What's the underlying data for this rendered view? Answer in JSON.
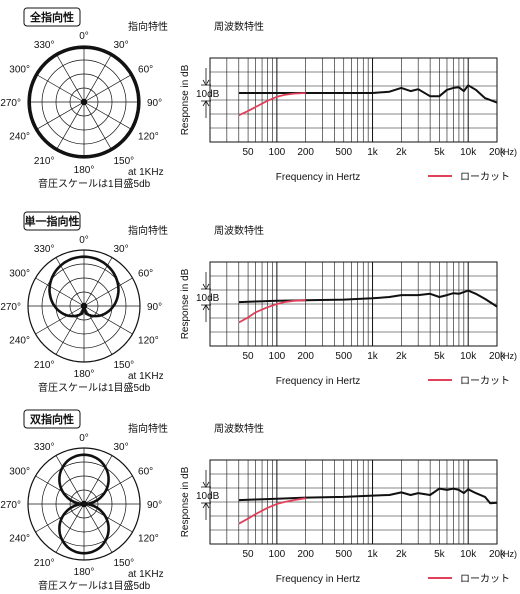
{
  "chart_data": [
    {
      "type": "polar",
      "mode_label": "全指向性",
      "header_polar": "指向特性",
      "pattern": "omni",
      "angle_labels": [
        "0°",
        "30°",
        "60°",
        "90°",
        "120°",
        "150°",
        "180°",
        "210°",
        "240°",
        "270°",
        "300°",
        "330°"
      ],
      "freq_note": "at 1KHz",
      "scale_note": "音圧スケールは1目盛5db",
      "grid_rings": 4,
      "pattern_values_db": {
        "angles": [
          0,
          30,
          60,
          90,
          120,
          150,
          180,
          210,
          240,
          270,
          300,
          330
        ],
        "db": [
          0,
          0,
          0,
          0,
          0,
          0,
          0,
          0,
          0,
          0,
          0,
          0
        ]
      }
    },
    {
      "type": "line",
      "header_freq": "周波数特性",
      "xlabel": "Frequency in Hertz",
      "ylabel": "Response in dB",
      "y_scale_label": "10dB",
      "xscale": "log",
      "xlim": [
        20,
        20000
      ],
      "x_tick_labels": [
        "50",
        "100",
        "200",
        "500",
        "1k",
        "2k",
        "5k",
        "10k",
        "20k"
      ],
      "x_unit": "(Hz)",
      "legend": "ローカット",
      "colors": {
        "main": "#111111",
        "lowcut": "#e0405a"
      },
      "series": [
        {
          "name": "",
          "x": [
            40,
            60,
            100,
            200,
            500,
            1000,
            1500,
            2000,
            2500,
            3000,
            4000,
            5000,
            6000,
            7000,
            8000,
            9000,
            10000,
            12000,
            15000,
            20000
          ],
          "y": [
            0,
            0,
            0,
            0,
            0,
            0,
            0.2,
            0.8,
            0.3,
            0.6,
            -0.5,
            -0.5,
            0.5,
            0.8,
            0.9,
            0.3,
            1.2,
            0.5,
            -0.8,
            -1.5
          ]
        },
        {
          "name": "ローカット",
          "x": [
            40,
            50,
            60,
            80,
            100,
            120,
            150,
            200
          ],
          "y": [
            -3.5,
            -2.8,
            -2.2,
            -1.2,
            -0.6,
            -0.3,
            -0.1,
            0
          ]
        }
      ]
    },
    {
      "type": "polar",
      "mode_label": "単一指向性",
      "header_polar": "指向特性",
      "pattern": "cardioid",
      "angle_labels": [
        "0°",
        "30°",
        "60°",
        "90°",
        "120°",
        "150°",
        "180°",
        "210°",
        "240°",
        "270°",
        "300°",
        "330°"
      ],
      "freq_note": "at 1KHz",
      "scale_note": "音圧スケールは1目盛5db",
      "grid_rings": 4,
      "pattern_values_db": {
        "angles": [
          0,
          30,
          60,
          90,
          120,
          150,
          180,
          210,
          240,
          270,
          300,
          330
        ],
        "db": [
          0,
          -1,
          -3,
          -6,
          -11,
          -18,
          -20,
          -18,
          -11,
          -6,
          -3,
          -1
        ]
      }
    },
    {
      "type": "line",
      "header_freq": "周波数特性",
      "xlabel": "Frequency in Hertz",
      "ylabel": "Response in dB",
      "y_scale_label": "10dB",
      "xscale": "log",
      "xlim": [
        20,
        20000
      ],
      "x_tick_labels": [
        "50",
        "100",
        "200",
        "500",
        "1k",
        "2k",
        "5k",
        "10k",
        "20k"
      ],
      "x_unit": "(Hz)",
      "legend": "ローカット",
      "colors": {
        "main": "#111111",
        "lowcut": "#e0405a"
      },
      "series": [
        {
          "name": "",
          "x": [
            40,
            60,
            100,
            200,
            500,
            1000,
            1500,
            2000,
            3000,
            4000,
            5000,
            6000,
            7000,
            8000,
            10000,
            12000,
            15000,
            20000
          ],
          "y": [
            -0.8,
            -0.7,
            -0.6,
            -0.5,
            -0.4,
            -0.2,
            0,
            0.3,
            0.3,
            0.5,
            0,
            0.3,
            0.6,
            0.5,
            1.0,
            0.5,
            -0.3,
            -1.5
          ]
        },
        {
          "name": "ローカット",
          "x": [
            40,
            50,
            60,
            80,
            100,
            120,
            150,
            200
          ],
          "y": [
            -4,
            -3.2,
            -2.4,
            -1.6,
            -1.1,
            -0.8,
            -0.6,
            -0.5
          ]
        }
      ]
    },
    {
      "type": "polar",
      "mode_label": "双指向性",
      "header_polar": "指向特性",
      "pattern": "figure8",
      "angle_labels": [
        "0°",
        "30°",
        "60°",
        "90°",
        "120°",
        "150°",
        "180°",
        "210°",
        "240°",
        "270°",
        "300°",
        "330°"
      ],
      "freq_note": "at 1KHz",
      "scale_note": "音圧スケールは1目盛5db",
      "grid_rings": 4,
      "pattern_values_db": {
        "angles": [
          0,
          30,
          60,
          90,
          120,
          150,
          180,
          210,
          240,
          270,
          300,
          330
        ],
        "db": [
          0,
          -1.5,
          -6,
          -20,
          -6,
          -1.5,
          0,
          -1.5,
          -6,
          -20,
          -6,
          -1.5
        ]
      }
    },
    {
      "type": "line",
      "header_freq": "周波数特性",
      "xlabel": "Frequency in Hertz",
      "ylabel": "Response in dB",
      "y_scale_label": "10dB",
      "xscale": "log",
      "xlim": [
        20,
        20000
      ],
      "x_tick_labels": [
        "50",
        "100",
        "200",
        "500",
        "1k",
        "2k",
        "5k",
        "10k",
        "20k"
      ],
      "x_unit": "(Hz)",
      "legend": "ローカット",
      "colors": {
        "main": "#111111",
        "lowcut": "#e0405a"
      },
      "series": [
        {
          "name": "",
          "x": [
            40,
            60,
            100,
            200,
            500,
            1000,
            1500,
            2000,
            2500,
            3000,
            4000,
            5000,
            6000,
            7000,
            8000,
            9000,
            10000,
            12000,
            15000,
            17000,
            20000
          ],
          "y": [
            -0.8,
            -0.7,
            -0.6,
            -0.4,
            -0.3,
            -0.1,
            0,
            0.4,
            0,
            0.3,
            0,
            1.0,
            0.8,
            1.0,
            0.8,
            0.3,
            0.9,
            0.3,
            -0.3,
            -1.3,
            -1.2
          ]
        },
        {
          "name": "ローカット",
          "x": [
            40,
            50,
            60,
            80,
            100,
            120,
            150,
            200
          ],
          "y": [
            -4.5,
            -3.7,
            -3.0,
            -2.0,
            -1.4,
            -1.1,
            -0.8,
            -0.5
          ]
        }
      ]
    }
  ]
}
